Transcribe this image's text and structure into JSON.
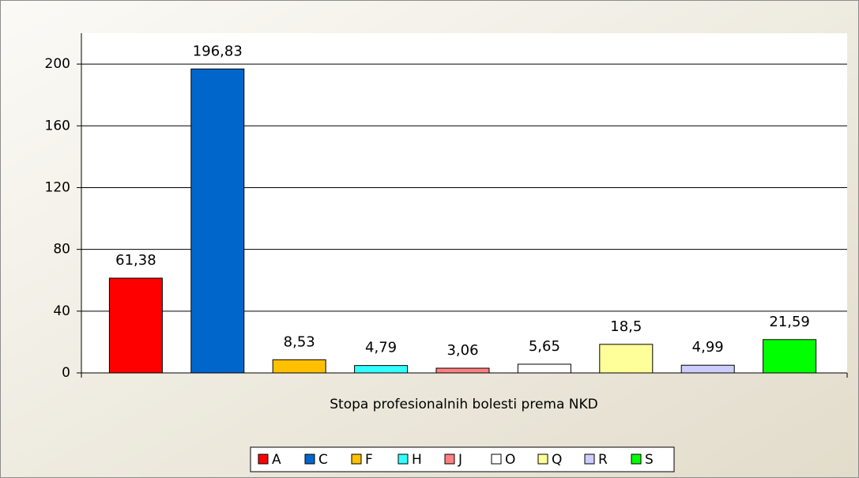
{
  "chart_data": {
    "type": "bar",
    "xlabel": "Stopa profesionalnih bolesti prema NKD",
    "series": [
      {
        "name": "A",
        "color": "#ff0000",
        "values": [
          61.38
        ],
        "value_labels": [
          "61,38"
        ]
      },
      {
        "name": "C",
        "color": "#0066cc",
        "values": [
          196.83
        ],
        "value_labels": [
          "196,83"
        ]
      },
      {
        "name": "F",
        "color": "#ffc000",
        "values": [
          8.53
        ],
        "value_labels": [
          "8,53"
        ]
      },
      {
        "name": "H",
        "color": "#33ffff",
        "values": [
          4.79
        ],
        "value_labels": [
          "4,79"
        ]
      },
      {
        "name": "J",
        "color": "#ff8080",
        "values": [
          3.06
        ],
        "value_labels": [
          "3,06"
        ]
      },
      {
        "name": "O",
        "color": "#ffffff",
        "values": [
          5.65
        ],
        "value_labels": [
          "5,65"
        ]
      },
      {
        "name": "Q",
        "color": "#ffff99",
        "values": [
          18.5
        ],
        "value_labels": [
          "18,5"
        ]
      },
      {
        "name": "R",
        "color": "#ccccff",
        "values": [
          4.99
        ],
        "value_labels": [
          "4,99"
        ]
      },
      {
        "name": "S",
        "color": "#00ff00",
        "values": [
          21.59
        ],
        "value_labels": [
          "21,59"
        ]
      }
    ],
    "ylim": [
      0,
      220
    ],
    "yticks": [
      0,
      40,
      80,
      120,
      160,
      200
    ],
    "grid": true,
    "legend": "bottom"
  }
}
